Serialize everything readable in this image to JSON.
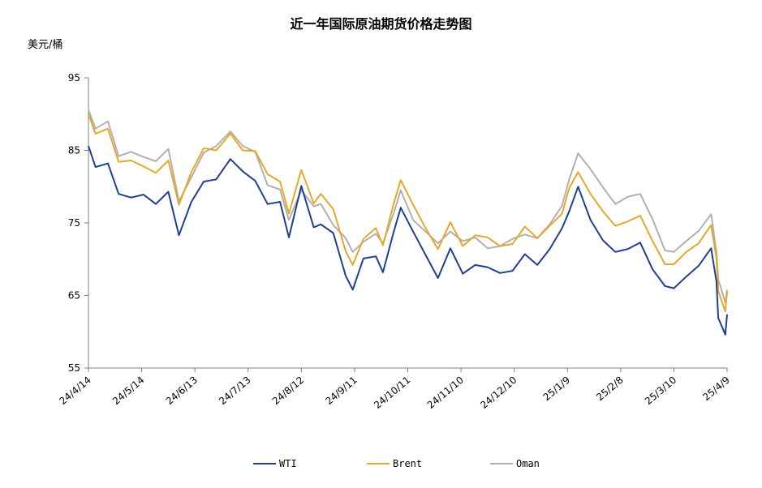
{
  "chart_data": {
    "type": "line",
    "title": "近一年国际原油期货价格走势图",
    "ylabel": "美元/桶",
    "xlabel": "",
    "ylim": [
      55,
      95
    ],
    "yticks": [
      55,
      65,
      75,
      85,
      95
    ],
    "grid": false,
    "legend_position": "bottom",
    "x_tick_labels": [
      "24/4/14",
      "24/5/14",
      "24/6/13",
      "24/7/13",
      "24/8/12",
      "24/9/11",
      "24/10/11",
      "24/11/10",
      "24/12/10",
      "25/1/9",
      "25/2/8",
      "25/3/10",
      "25/4/9"
    ],
    "x_range": [
      "2024-04-14",
      "2025-04-09"
    ],
    "series": [
      {
        "name": "WTI",
        "color": "#1f3f8f",
        "points": [
          [
            "2024-04-14",
            85.6
          ],
          [
            "2024-04-18",
            82.7
          ],
          [
            "2024-04-25",
            83.2
          ],
          [
            "2024-05-01",
            79.0
          ],
          [
            "2024-05-08",
            78.5
          ],
          [
            "2024-05-15",
            78.9
          ],
          [
            "2024-05-22",
            77.6
          ],
          [
            "2024-05-29",
            79.3
          ],
          [
            "2024-06-04",
            73.3
          ],
          [
            "2024-06-11",
            77.9
          ],
          [
            "2024-06-18",
            80.7
          ],
          [
            "2024-06-25",
            81.0
          ],
          [
            "2024-07-03",
            83.8
          ],
          [
            "2024-07-10",
            82.1
          ],
          [
            "2024-07-17",
            80.8
          ],
          [
            "2024-07-24",
            77.6
          ],
          [
            "2024-07-31",
            77.9
          ],
          [
            "2024-08-05",
            73.0
          ],
          [
            "2024-08-12",
            80.1
          ],
          [
            "2024-08-19",
            74.4
          ],
          [
            "2024-08-23",
            74.8
          ],
          [
            "2024-08-30",
            73.6
          ],
          [
            "2024-09-06",
            67.7
          ],
          [
            "2024-09-10",
            65.8
          ],
          [
            "2024-09-16",
            70.1
          ],
          [
            "2024-09-23",
            70.4
          ],
          [
            "2024-09-27",
            68.2
          ],
          [
            "2024-10-03",
            73.7
          ],
          [
            "2024-10-07",
            77.1
          ],
          [
            "2024-10-14",
            73.8
          ],
          [
            "2024-10-21",
            70.6
          ],
          [
            "2024-10-28",
            67.4
          ],
          [
            "2024-11-04",
            71.5
          ],
          [
            "2024-11-11",
            68.0
          ],
          [
            "2024-11-18",
            69.2
          ],
          [
            "2024-11-25",
            68.9
          ],
          [
            "2024-12-02",
            68.1
          ],
          [
            "2024-12-09",
            68.4
          ],
          [
            "2024-12-16",
            70.7
          ],
          [
            "2024-12-23",
            69.2
          ],
          [
            "2024-12-30",
            71.4
          ],
          [
            "2025-01-06",
            74.3
          ],
          [
            "2025-01-10",
            76.6
          ],
          [
            "2025-01-15",
            80.0
          ],
          [
            "2025-01-22",
            75.4
          ],
          [
            "2025-01-29",
            72.6
          ],
          [
            "2025-02-05",
            71.0
          ],
          [
            "2025-02-12",
            71.4
          ],
          [
            "2025-02-19",
            72.3
          ],
          [
            "2025-02-26",
            68.6
          ],
          [
            "2025-03-05",
            66.3
          ],
          [
            "2025-03-10",
            66.0
          ],
          [
            "2025-03-17",
            67.6
          ],
          [
            "2025-03-24",
            69.1
          ],
          [
            "2025-03-31",
            71.5
          ],
          [
            "2025-04-03",
            66.9
          ],
          [
            "2025-04-04",
            61.9
          ],
          [
            "2025-04-08",
            59.6
          ],
          [
            "2025-04-09",
            62.4
          ]
        ]
      },
      {
        "name": "Brent",
        "color": "#e3a92a",
        "points": [
          [
            "2024-04-14",
            90.0
          ],
          [
            "2024-04-18",
            87.3
          ],
          [
            "2024-04-25",
            88.0
          ],
          [
            "2024-05-01",
            83.4
          ],
          [
            "2024-05-08",
            83.6
          ],
          [
            "2024-05-15",
            82.8
          ],
          [
            "2024-05-22",
            81.9
          ],
          [
            "2024-05-29",
            83.6
          ],
          [
            "2024-06-04",
            77.5
          ],
          [
            "2024-06-11",
            82.0
          ],
          [
            "2024-06-18",
            85.3
          ],
          [
            "2024-06-25",
            85.0
          ],
          [
            "2024-07-03",
            87.3
          ],
          [
            "2024-07-10",
            85.0
          ],
          [
            "2024-07-17",
            84.9
          ],
          [
            "2024-07-24",
            81.7
          ],
          [
            "2024-07-31",
            80.7
          ],
          [
            "2024-08-05",
            76.3
          ],
          [
            "2024-08-12",
            82.3
          ],
          [
            "2024-08-19",
            77.7
          ],
          [
            "2024-08-23",
            79.0
          ],
          [
            "2024-08-30",
            76.9
          ],
          [
            "2024-09-06",
            71.1
          ],
          [
            "2024-09-10",
            69.2
          ],
          [
            "2024-09-16",
            72.8
          ],
          [
            "2024-09-23",
            74.3
          ],
          [
            "2024-09-27",
            71.9
          ],
          [
            "2024-10-03",
            77.6
          ],
          [
            "2024-10-07",
            80.9
          ],
          [
            "2024-10-14",
            77.5
          ],
          [
            "2024-10-21",
            74.3
          ],
          [
            "2024-10-28",
            71.4
          ],
          [
            "2024-11-04",
            75.1
          ],
          [
            "2024-11-11",
            71.8
          ],
          [
            "2024-11-18",
            73.3
          ],
          [
            "2024-11-25",
            73.0
          ],
          [
            "2024-12-02",
            71.8
          ],
          [
            "2024-12-09",
            72.1
          ],
          [
            "2024-12-16",
            74.5
          ],
          [
            "2024-12-23",
            72.9
          ],
          [
            "2024-12-30",
            74.6
          ],
          [
            "2025-01-06",
            76.3
          ],
          [
            "2025-01-10",
            79.8
          ],
          [
            "2025-01-15",
            82.0
          ],
          [
            "2025-01-22",
            79.0
          ],
          [
            "2025-01-29",
            76.6
          ],
          [
            "2025-02-05",
            74.6
          ],
          [
            "2025-02-12",
            75.2
          ],
          [
            "2025-02-19",
            76.0
          ],
          [
            "2025-02-26",
            72.5
          ],
          [
            "2025-03-05",
            69.3
          ],
          [
            "2025-03-10",
            69.3
          ],
          [
            "2025-03-17",
            71.0
          ],
          [
            "2025-03-24",
            72.2
          ],
          [
            "2025-03-31",
            74.7
          ],
          [
            "2025-04-03",
            70.1
          ],
          [
            "2025-04-04",
            65.6
          ],
          [
            "2025-04-08",
            62.8
          ],
          [
            "2025-04-09",
            65.5
          ]
        ]
      },
      {
        "name": "Oman",
        "color": "#b0b0b0",
        "points": [
          [
            "2024-04-14",
            90.6
          ],
          [
            "2024-04-18",
            88.0
          ],
          [
            "2024-04-25",
            89.0
          ],
          [
            "2024-05-01",
            84.2
          ],
          [
            "2024-05-08",
            84.8
          ],
          [
            "2024-05-15",
            84.1
          ],
          [
            "2024-05-22",
            83.5
          ],
          [
            "2024-05-29",
            85.2
          ],
          [
            "2024-06-04",
            78.0
          ],
          [
            "2024-06-11",
            81.3
          ],
          [
            "2024-06-18",
            84.7
          ],
          [
            "2024-06-25",
            85.6
          ],
          [
            "2024-07-03",
            87.6
          ],
          [
            "2024-07-10",
            85.6
          ],
          [
            "2024-07-17",
            84.8
          ],
          [
            "2024-07-24",
            80.2
          ],
          [
            "2024-07-31",
            79.6
          ],
          [
            "2024-08-05",
            75.4
          ],
          [
            "2024-08-12",
            79.5
          ],
          [
            "2024-08-19",
            77.3
          ],
          [
            "2024-08-23",
            77.6
          ],
          [
            "2024-08-30",
            74.7
          ],
          [
            "2024-09-06",
            72.9
          ],
          [
            "2024-09-10",
            71.0
          ],
          [
            "2024-09-16",
            72.4
          ],
          [
            "2024-09-23",
            73.5
          ],
          [
            "2024-09-27",
            72.2
          ],
          [
            "2024-10-03",
            76.3
          ],
          [
            "2024-10-07",
            79.5
          ],
          [
            "2024-10-14",
            75.4
          ],
          [
            "2024-10-21",
            73.8
          ],
          [
            "2024-10-28",
            72.2
          ],
          [
            "2024-11-04",
            73.8
          ],
          [
            "2024-11-11",
            72.5
          ],
          [
            "2024-11-18",
            73.0
          ],
          [
            "2024-11-25",
            71.5
          ],
          [
            "2024-12-02",
            71.8
          ],
          [
            "2024-12-09",
            72.8
          ],
          [
            "2024-12-16",
            73.4
          ],
          [
            "2024-12-23",
            72.9
          ],
          [
            "2024-12-30",
            74.8
          ],
          [
            "2025-01-06",
            77.4
          ],
          [
            "2025-01-10",
            81.0
          ],
          [
            "2025-01-15",
            84.6
          ],
          [
            "2025-01-22",
            82.4
          ],
          [
            "2025-01-29",
            79.9
          ],
          [
            "2025-02-05",
            77.6
          ],
          [
            "2025-02-12",
            78.6
          ],
          [
            "2025-02-19",
            79.0
          ],
          [
            "2025-02-26",
            75.5
          ],
          [
            "2025-03-05",
            71.2
          ],
          [
            "2025-03-10",
            71.0
          ],
          [
            "2025-03-17",
            72.5
          ],
          [
            "2025-03-24",
            73.9
          ],
          [
            "2025-03-31",
            76.2
          ],
          [
            "2025-04-03",
            71.0
          ],
          [
            "2025-04-04",
            67.2
          ],
          [
            "2025-04-08",
            64.0
          ],
          [
            "2025-04-09",
            65.8
          ]
        ]
      }
    ]
  }
}
